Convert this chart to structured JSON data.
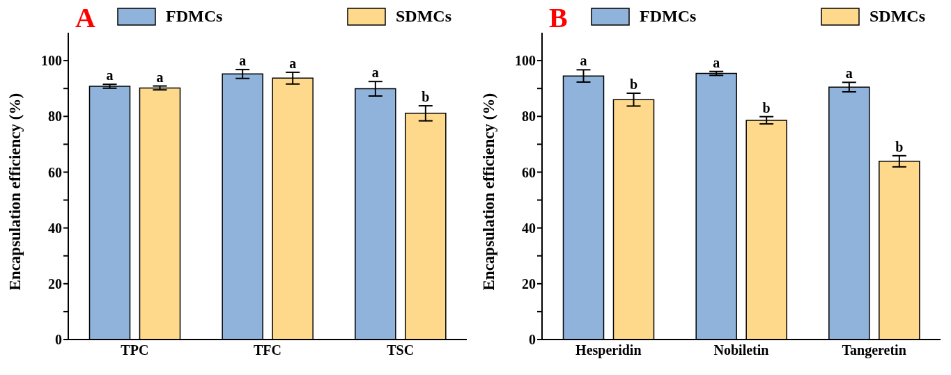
{
  "chart_data": [
    {
      "type": "bar",
      "title": "A",
      "ylabel": "Encapsulation efficiency (%)",
      "categories": [
        "TPC",
        "TFC",
        "TSC"
      ],
      "series": [
        {
          "name": "FDMCs",
          "color": "#8fb3da",
          "values": [
            90.8,
            95.2,
            89.9
          ],
          "errors": [
            0.7,
            1.6,
            2.6
          ],
          "value_labels": [
            "a",
            "a",
            "a"
          ]
        },
        {
          "name": "SDMCs",
          "color": "#fed98c",
          "values": [
            90.2,
            93.7,
            81.1
          ],
          "errors": [
            0.7,
            2.1,
            2.7
          ],
          "value_labels": [
            "a",
            "a",
            "b"
          ]
        }
      ],
      "ylim": [
        0,
        110
      ],
      "yticks": [
        0,
        {
          "value": 10,
          "label": null
        },
        20,
        {
          "value": 30,
          "label": null
        },
        40,
        {
          "value": 50,
          "label": null
        },
        60,
        {
          "value": 70,
          "label": null
        },
        80,
        {
          "value": 90,
          "label": null
        },
        100
      ],
      "grid": false,
      "legend": "top"
    },
    {
      "type": "bar",
      "title": "B",
      "ylabel": "Encapsulation efficiency (%)",
      "categories": [
        "Hesperidin",
        "Nobiletin",
        "Tangeretin"
      ],
      "series": [
        {
          "name": "FDMCs",
          "color": "#8fb3da",
          "values": [
            94.5,
            95.4,
            90.5
          ],
          "errors": [
            2.2,
            0.7,
            1.7
          ],
          "value_labels": [
            "a",
            "a",
            "a"
          ]
        },
        {
          "name": "SDMCs",
          "color": "#fed98c",
          "values": [
            86.0,
            78.6,
            63.9
          ],
          "errors": [
            2.3,
            1.3,
            2.0
          ],
          "value_labels": [
            "b",
            "b",
            "b"
          ]
        }
      ],
      "ylim": [
        0,
        110
      ],
      "yticks": [
        0,
        {
          "value": 10,
          "label": null
        },
        20,
        {
          "value": 30,
          "label": null
        },
        40,
        {
          "value": 50,
          "label": null
        },
        60,
        {
          "value": 70,
          "label": null
        },
        80,
        {
          "value": 90,
          "label": null
        },
        100
      ],
      "grid": false,
      "legend": "top"
    }
  ]
}
